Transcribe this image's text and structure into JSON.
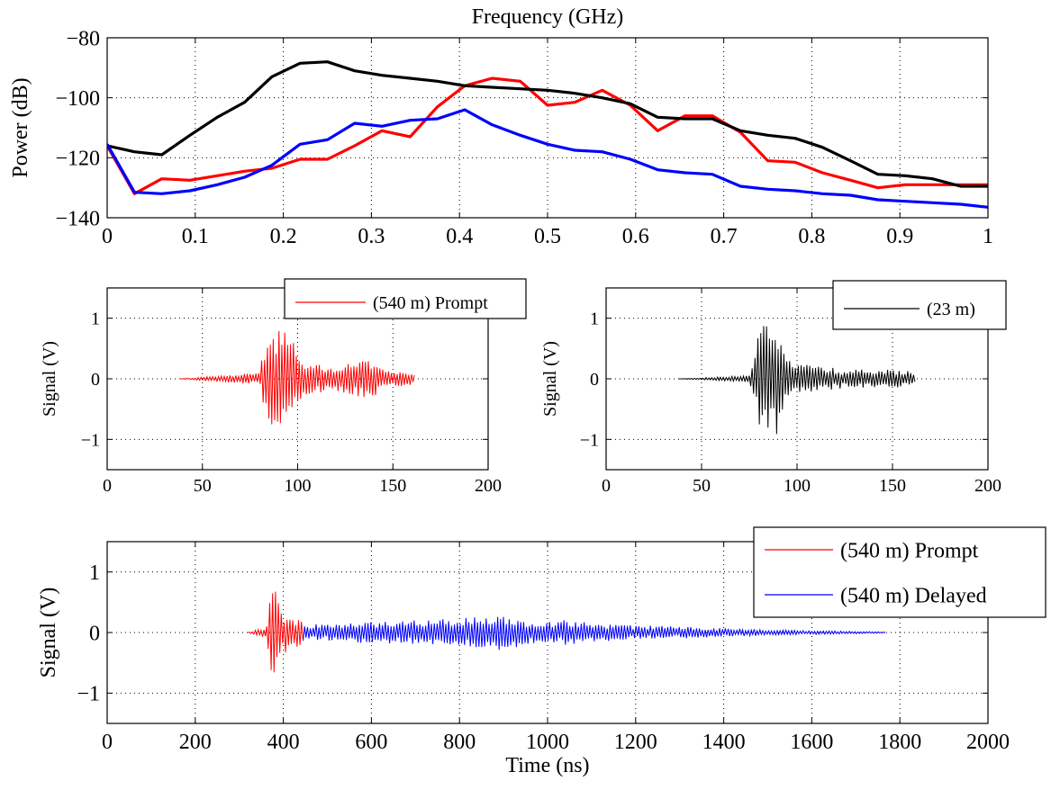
{
  "chart_data": [
    {
      "type": "line",
      "xlabel": "Frequency (GHz)",
      "ylabel": "Power (dB)",
      "xlim": [
        0,
        1
      ],
      "ylim": [
        -140,
        -80
      ],
      "xticks": [
        "0",
        "0.1",
        "0.2",
        "0.3",
        "0.4",
        "0.5",
        "0.6",
        "0.7",
        "0.8",
        "0.9",
        "1"
      ],
      "yticks": [
        "−140",
        "−120",
        "−100",
        "−80"
      ],
      "grid": true,
      "series": [
        {
          "color": "#ff0000",
          "x": [
            0,
            0.031,
            0.062,
            0.094,
            0.125,
            0.156,
            0.187,
            0.219,
            0.25,
            0.281,
            0.312,
            0.344,
            0.375,
            0.406,
            0.437,
            0.469,
            0.5,
            0.531,
            0.562,
            0.594,
            0.625,
            0.656,
            0.687,
            0.719,
            0.75,
            0.781,
            0.812,
            0.844,
            0.875,
            0.906,
            0.937,
            0.969,
            1.0
          ],
          "y": [
            -116,
            -132,
            -127,
            -127.5,
            -126,
            -124.5,
            -123.5,
            -120.5,
            -120.5,
            -116,
            -111,
            -113,
            -103,
            -96,
            -93.5,
            -94.5,
            -102.5,
            -101.5,
            -97.5,
            -102.5,
            -111,
            -106,
            -106,
            -111.5,
            -121,
            -121.5,
            -125,
            -127.5,
            -130,
            -129,
            -129,
            -129,
            -129
          ]
        },
        {
          "color": "#000000",
          "x": [
            0,
            0.031,
            0.062,
            0.094,
            0.125,
            0.156,
            0.187,
            0.219,
            0.25,
            0.281,
            0.312,
            0.344,
            0.375,
            0.406,
            0.437,
            0.469,
            0.5,
            0.531,
            0.562,
            0.594,
            0.625,
            0.656,
            0.687,
            0.719,
            0.75,
            0.781,
            0.812,
            0.844,
            0.875,
            0.906,
            0.937,
            0.969,
            1.0
          ],
          "y": [
            -116,
            -118,
            -119,
            -112.5,
            -106.5,
            -101.5,
            -93,
            -88.5,
            -88,
            -91,
            -92.5,
            -93.5,
            -94.5,
            -96,
            -96.5,
            -97,
            -97.5,
            -98.5,
            -100,
            -102,
            -106.5,
            -107,
            -107,
            -111,
            -112.5,
            -113.5,
            -116.5,
            -121,
            -125.5,
            -126,
            -127,
            -129.5,
            -129.5
          ]
        },
        {
          "color": "#0000ff",
          "x": [
            0,
            0.031,
            0.062,
            0.094,
            0.125,
            0.156,
            0.187,
            0.219,
            0.25,
            0.281,
            0.312,
            0.344,
            0.375,
            0.406,
            0.437,
            0.469,
            0.5,
            0.531,
            0.562,
            0.594,
            0.625,
            0.656,
            0.687,
            0.719,
            0.75,
            0.781,
            0.812,
            0.844,
            0.875,
            0.906,
            0.937,
            0.969,
            1.0
          ],
          "y": [
            -115.5,
            -131.5,
            -132,
            -131,
            -129,
            -126.5,
            -122.5,
            -115.5,
            -114,
            -108.5,
            -109.5,
            -107.5,
            -107,
            -104,
            -109,
            -112.5,
            -115.5,
            -117.5,
            -118,
            -120.5,
            -124,
            -125,
            -125.5,
            -129.5,
            -130.5,
            -131,
            -132,
            -132.5,
            -134,
            -134.5,
            -135,
            -135.5,
            -136.5
          ]
        }
      ]
    },
    {
      "type": "line",
      "ylabel": "Signal (V)",
      "xlim": [
        0,
        200
      ],
      "ylim": [
        -1.5,
        1.5
      ],
      "xticks": [
        "0",
        "50",
        "100",
        "150",
        "200"
      ],
      "yticks": [
        "−1",
        "0",
        "1"
      ],
      "grid": true,
      "legend_position": "top-right",
      "series": [
        {
          "name": "(540 m) Prompt",
          "color": "#ff0000",
          "t_start": 38,
          "t_end": 162,
          "segments": [
            [
              38,
              0
            ],
            [
              80,
              0.1
            ],
            [
              82,
              0.5
            ],
            [
              84,
              0.7
            ],
            [
              86,
              1.05
            ],
            [
              90,
              0.8
            ],
            [
              95,
              0.85
            ],
            [
              100,
              0.4
            ],
            [
              105,
              0.3
            ],
            [
              110,
              0.25
            ],
            [
              115,
              0.2
            ],
            [
              120,
              0.2
            ],
            [
              125,
              0.25
            ],
            [
              130,
              0.3
            ],
            [
              140,
              0.3
            ],
            [
              145,
              0.2
            ],
            [
              150,
              0.12
            ],
            [
              156,
              0.15
            ],
            [
              162,
              0.05
            ]
          ]
        }
      ]
    },
    {
      "type": "line",
      "ylabel": "Signal (V)",
      "xlim": [
        0,
        200
      ],
      "ylim": [
        -1.5,
        1.5
      ],
      "xticks": [
        "0",
        "50",
        "100",
        "150",
        "200"
      ],
      "yticks": [
        "−1",
        "0",
        "1"
      ],
      "grid": true,
      "legend_position": "top-right",
      "series": [
        {
          "name": "(23 m)",
          "color": "#000000",
          "t_start": 38,
          "t_end": 162,
          "segments": [
            [
              38,
              0
            ],
            [
              74,
              0.05
            ],
            [
              77,
              0.2
            ],
            [
              80,
              0.9
            ],
            [
              85,
              1.1
            ],
            [
              90,
              1.05
            ],
            [
              94,
              0.5
            ],
            [
              98,
              0.3
            ],
            [
              105,
              0.25
            ],
            [
              115,
              0.2
            ],
            [
              125,
              0.15
            ],
            [
              135,
              0.15
            ],
            [
              145,
              0.15
            ],
            [
              155,
              0.15
            ],
            [
              162,
              0.1
            ]
          ]
        }
      ]
    },
    {
      "type": "line",
      "xlabel": "Time (ns)",
      "ylabel": "Signal (V)",
      "xlim": [
        0,
        2000
      ],
      "ylim": [
        -1.5,
        1.5
      ],
      "xticks": [
        "0",
        "200",
        "400",
        "600",
        "800",
        "1000",
        "1200",
        "1400",
        "1600",
        "1800",
        "2000"
      ],
      "yticks": [
        "−1",
        "0",
        "1"
      ],
      "grid": true,
      "legend_position": "top-right",
      "series": [
        {
          "name": "(540 m) Prompt",
          "color": "#ff0000",
          "t_start": 320,
          "t_end": 445,
          "segments": [
            [
              320,
              0
            ],
            [
              362,
              0.1
            ],
            [
              366,
              0.5
            ],
            [
              372,
              1.05
            ],
            [
              378,
              0.8
            ],
            [
              385,
              0.6
            ],
            [
              395,
              0.4
            ],
            [
              410,
              0.3
            ],
            [
              425,
              0.25
            ],
            [
              445,
              0.2
            ]
          ]
        },
        {
          "name": "(540 m) Delayed",
          "color": "#0000ff",
          "t_start": 445,
          "t_end": 1770,
          "segments": [
            [
              445,
              0.15
            ],
            [
              500,
              0.13
            ],
            [
              600,
              0.18
            ],
            [
              700,
              0.2
            ],
            [
              800,
              0.25
            ],
            [
              900,
              0.3
            ],
            [
              960,
              0.18
            ],
            [
              1000,
              0.18
            ],
            [
              1060,
              0.22
            ],
            [
              1100,
              0.15
            ],
            [
              1200,
              0.12
            ],
            [
              1300,
              0.1
            ],
            [
              1400,
              0.07
            ],
            [
              1500,
              0.05
            ],
            [
              1600,
              0.03
            ],
            [
              1700,
              0.02
            ],
            [
              1770,
              0.01
            ]
          ]
        }
      ]
    }
  ]
}
